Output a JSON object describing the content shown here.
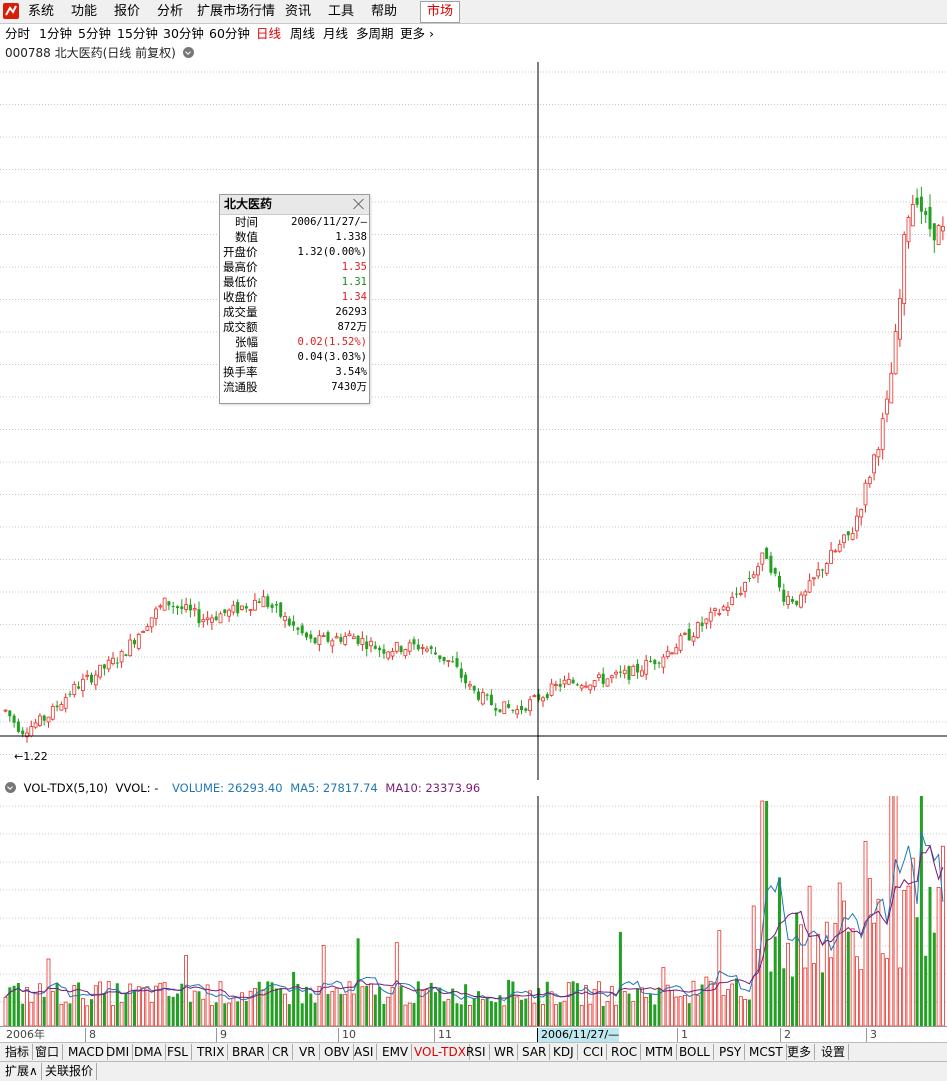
{
  "menu": {
    "items": [
      "系统",
      "功能",
      "报价",
      "分析",
      "扩展市场行情",
      "资讯",
      "工具",
      "帮助"
    ],
    "market_button": "市场"
  },
  "periods": {
    "items": [
      "分时",
      "1分钟",
      "5分钟",
      "15分钟",
      "30分钟",
      "60分钟",
      "日线",
      "周线",
      "月线",
      "多周期",
      "更多"
    ],
    "active": "日线"
  },
  "header": {
    "title": "000788 北大医药(日线 前复权)"
  },
  "main_chart": {
    "low_marker": "←1.22",
    "cursor_date": "2006/11/27/—"
  },
  "popup": {
    "title": "北大医药",
    "rows": [
      {
        "label": "时间",
        "value": "2006/11/27/—",
        "color": ""
      },
      {
        "label": "数值",
        "value": "1.338",
        "color": ""
      },
      {
        "label": "开盘价",
        "value": "1.32(0.00%)",
        "color": ""
      },
      {
        "label": "最高价",
        "value": "1.35",
        "color": "red"
      },
      {
        "label": "最低价",
        "value": "1.31",
        "color": "green"
      },
      {
        "label": "收盘价",
        "value": "1.34",
        "color": "red"
      },
      {
        "label": "成交量",
        "value": "26293",
        "color": ""
      },
      {
        "label": "成交额",
        "value": "872万",
        "color": ""
      },
      {
        "label": "张幅",
        "value": "0.02(1.52%)",
        "color": "red"
      },
      {
        "label": "振幅",
        "value": "0.04(3.03%)",
        "color": ""
      },
      {
        "label": "换手率",
        "value": "3.54%",
        "color": ""
      },
      {
        "label": "流通股",
        "value": "7430万",
        "color": ""
      }
    ]
  },
  "volume_panel": {
    "indicator": "VOL-TDX(5,10)",
    "vvol": "VVOL: -",
    "volume": "VOLUME: 26293.40",
    "ma5": "MA5: 27817.74",
    "ma10": "MA10: 23373.96",
    "colors": {
      "volume": "#1f77b4",
      "ma5": "#1f77b4",
      "ma10": "#7a1a7a"
    }
  },
  "xaxis": {
    "labels": [
      "2006年",
      "8",
      "9",
      "10",
      "11",
      "2006/11/27/—",
      "1",
      "2",
      "3"
    ]
  },
  "indicator_tabs": [
    "指标",
    "窗口",
    "MACD",
    "DMI",
    "DMA",
    "FSL",
    "TRIX",
    "BRAR",
    "CR",
    "VR",
    "OBV",
    "ASI",
    "EMV",
    "VOL-TDX",
    "RSI",
    "WR",
    "SAR",
    "KDJ",
    "CCI",
    "ROC",
    "MTM",
    "BOLL",
    "PSY",
    "MCST",
    "更多",
    "设置"
  ],
  "active_indicator": "VOL-TDX",
  "bottom_tabs": [
    "扩展∧",
    "关联报价"
  ],
  "colors": {
    "up": "#e8302a",
    "down": "#22a022",
    "grid": "#c8c8c8",
    "cursor": "#000"
  },
  "chart_data": {
    "type": "candlestick",
    "x": [
      "2006年",
      "8",
      "9",
      "10",
      "11",
      "2006/11/27/—",
      "1",
      "2",
      "3"
    ],
    "price_min": 1.22,
    "cursor_bar": {
      "date": "2006/11/27/—",
      "open": 1.32,
      "high": 1.35,
      "low": 1.31,
      "close": 1.34,
      "volume": 26293
    }
  }
}
